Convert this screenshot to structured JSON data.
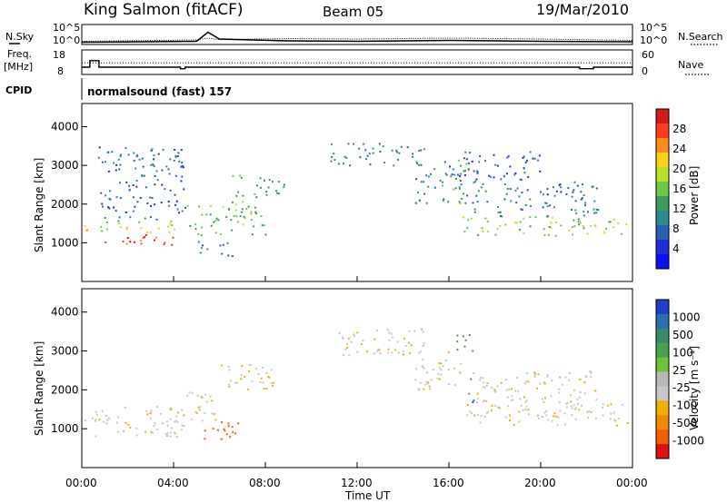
{
  "header": {
    "station": "King Salmon (fitACF)",
    "beam": "Beam 05",
    "date": "19/Mar/2010"
  },
  "top_panels": {
    "nsky_label": "N.Sky",
    "nsearch_label": "N.Search",
    "freq_label": "Freq.",
    "freq_unit": "[MHz]",
    "nave_label": "Nave",
    "cpid_label": "CPID",
    "cpid_program": "normalsound (fast) 157",
    "noise_ticks": [
      "10^5",
      "10^0"
    ],
    "freq_ticks": [
      "18",
      "8"
    ],
    "nave_ticks": [
      "60",
      "0"
    ]
  },
  "axes": {
    "ylabel": "Slant Range [km]",
    "xlabel": "Time UT",
    "x_ticks": [
      "00:00",
      "04:00",
      "08:00",
      "12:00",
      "16:00",
      "20:00",
      "00:00"
    ],
    "y_ticks": [
      "1000",
      "2000",
      "3000",
      "4000"
    ]
  },
  "colorbars": {
    "power": {
      "label": "Power [dB]",
      "ticks": [
        "28",
        "24",
        "20",
        "16",
        "12",
        "8",
        "4"
      ],
      "colors": [
        "#d41a1a",
        "#ff3b1f",
        "#ff8a1f",
        "#ffd21a",
        "#b5e12a",
        "#6fc848",
        "#3e9a5e",
        "#2d8a8f",
        "#2a5fb0",
        "#1f2fd8",
        "#0b10f0"
      ]
    },
    "velocity": {
      "label": "Velocity [m s⁻¹]",
      "ticks": [
        "1000",
        "500",
        "100",
        "25",
        "-25",
        "-100",
        "-500",
        "-1000"
      ],
      "colors": [
        "#1f3fc8",
        "#2a6fb0",
        "#3a8a6a",
        "#4aa050",
        "#6ec23a",
        "#b8b8b8",
        "#c8c8c8",
        "#f0b000",
        "#f08a00",
        "#f06000",
        "#e01010"
      ]
    }
  },
  "chart_data": {
    "type": "heatmap",
    "x_unit": "hours UT",
    "x_range": [
      0,
      24
    ],
    "y_range": [
      0,
      4600
    ],
    "noise": {
      "search": [
        [
          0,
          0.5
        ],
        [
          5,
          0.8
        ],
        [
          5.5,
          1.2
        ],
        [
          6,
          0.9
        ],
        [
          9,
          1.1
        ],
        [
          12,
          1
        ],
        [
          16,
          1.2
        ],
        [
          20,
          1.0
        ],
        [
          24,
          0.7
        ]
      ],
      "sky": [
        [
          0,
          0.3
        ],
        [
          5,
          0.5
        ],
        [
          5.5,
          2.5
        ],
        [
          6,
          1
        ],
        [
          9,
          0.6
        ],
        [
          12,
          0.5
        ],
        [
          16,
          0.7
        ],
        [
          20,
          0.5
        ],
        [
          24,
          0.4
        ]
      ]
    },
    "freq_mhz": [
      [
        0,
        10.5
      ],
      [
        0.35,
        10.5
      ],
      [
        0.35,
        13.5
      ],
      [
        0.75,
        13.5
      ],
      [
        0.75,
        10.5
      ],
      [
        4.3,
        10.5
      ],
      [
        4.3,
        9.8
      ],
      [
        4.5,
        9.8
      ],
      [
        4.5,
        10.5
      ],
      [
        21.7,
        10.5
      ],
      [
        21.7,
        9.8
      ],
      [
        22.3,
        9.8
      ],
      [
        22.3,
        10.5
      ],
      [
        24,
        10.5
      ]
    ],
    "nave": [
      [
        0,
        27
      ],
      [
        24,
        27
      ]
    ],
    "power_regions": [
      {
        "t0": 0.1,
        "t1": 0.4,
        "r0": 900,
        "r1": 1500,
        "p": 22
      },
      {
        "t0": 0.8,
        "t1": 4.2,
        "r0": 950,
        "r1": 1250,
        "p": 27
      },
      {
        "t0": 0.8,
        "t1": 4.2,
        "r0": 1250,
        "r1": 1550,
        "p": 18
      },
      {
        "t0": 0.8,
        "t1": 4.2,
        "r0": 1550,
        "r1": 1700,
        "p": 11
      },
      {
        "t0": 0.7,
        "t1": 4.5,
        "r0": 1800,
        "r1": 3500,
        "p": 6
      },
      {
        "t0": 4.5,
        "t1": 8.0,
        "r0": 1200,
        "r1": 2100,
        "p": 14
      },
      {
        "t0": 5.0,
        "t1": 6.6,
        "r0": 650,
        "r1": 1050,
        "p": 9
      },
      {
        "t0": 6.5,
        "t1": 8.8,
        "r0": 2200,
        "r1": 2800,
        "p": 12
      },
      {
        "t0": 10.8,
        "t1": 15.0,
        "r0": 3000,
        "r1": 3600,
        "p": 9
      },
      {
        "t0": 14.5,
        "t1": 16.8,
        "r0": 2000,
        "r1": 3200,
        "p": 11
      },
      {
        "t0": 16.5,
        "t1": 23.8,
        "r0": 1200,
        "r1": 1700,
        "p": 16
      },
      {
        "t0": 17.0,
        "t1": 22.5,
        "r0": 1700,
        "r1": 2600,
        "p": 8
      },
      {
        "t0": 16.0,
        "t1": 20.0,
        "r0": 2600,
        "r1": 3400,
        "p": 6
      }
    ],
    "velocity_regions": [
      {
        "t0": 0.1,
        "t1": 4.5,
        "r0": 800,
        "r1": 1600,
        "v": 0
      },
      {
        "t0": 4.5,
        "t1": 6.0,
        "r0": 1200,
        "r1": 2000,
        "v": 0
      },
      {
        "t0": 5.2,
        "t1": 6.8,
        "r0": 650,
        "r1": 1200,
        "v": -600
      },
      {
        "t0": 6.0,
        "t1": 8.5,
        "r0": 2000,
        "r1": 2700,
        "v": 0
      },
      {
        "t0": 11.0,
        "t1": 15.0,
        "r0": 2900,
        "r1": 3600,
        "v": 0
      },
      {
        "t0": 14.5,
        "t1": 16.5,
        "r0": 2000,
        "r1": 3000,
        "v": 0
      },
      {
        "t0": 16.3,
        "t1": 17.0,
        "r0": 2900,
        "r1": 3500,
        "v": 200
      },
      {
        "t0": 16.8,
        "t1": 17.2,
        "r0": 1700,
        "r1": 2300,
        "v": 300
      },
      {
        "t0": 16.5,
        "t1": 23.8,
        "r0": 1100,
        "r1": 1700,
        "v": 0
      },
      {
        "t0": 17.0,
        "t1": 22.5,
        "r0": 1700,
        "r1": 2500,
        "v": 0
      }
    ]
  }
}
